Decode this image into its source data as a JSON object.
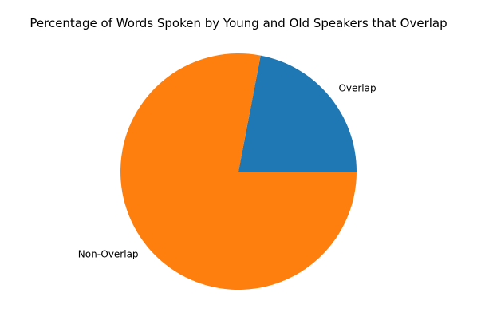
{
  "chart_data": {
    "type": "pie",
    "title": "Percentage of Words Spoken by Young and Old Speakers that Overlap",
    "start_angle_deg": 0,
    "direction": "counterclockwise",
    "slices": [
      {
        "label": "Overlap",
        "value": 22.0,
        "color": "#1f77b4"
      },
      {
        "label": "Non-Overlap",
        "value": 78.0,
        "color": "#ff7f0e"
      }
    ]
  }
}
